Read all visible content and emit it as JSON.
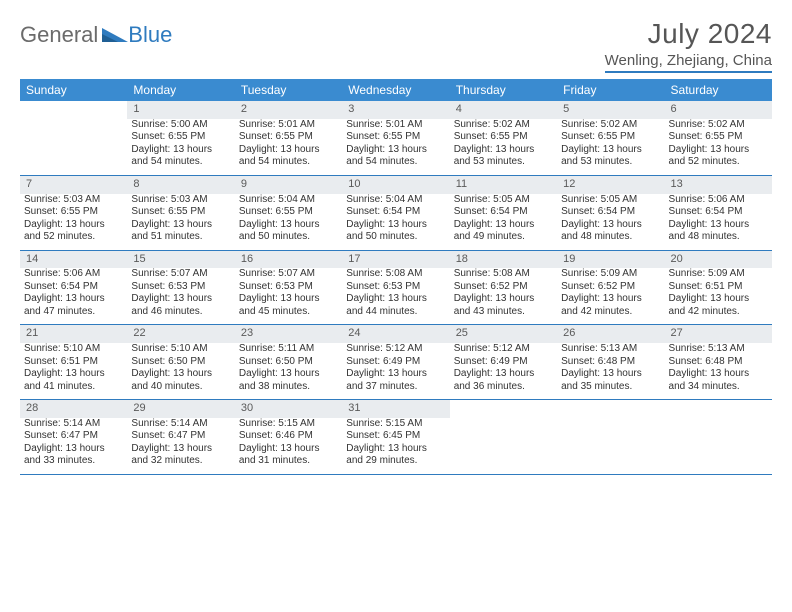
{
  "logo": {
    "text1": "General",
    "text2": "Blue"
  },
  "title": "July 2024",
  "location": "Wenling, Zhejiang, China",
  "colors": {
    "header_bg": "#3a8bd0",
    "header_text": "#ffffff",
    "daynum_bg": "#e9ecef",
    "border": "#2f7bbf",
    "text": "#333333",
    "title_text": "#565656"
  },
  "weekdays": [
    "Sunday",
    "Monday",
    "Tuesday",
    "Wednesday",
    "Thursday",
    "Friday",
    "Saturday"
  ],
  "weeks": [
    [
      null,
      {
        "n": "1",
        "sr": "5:00 AM",
        "ss": "6:55 PM",
        "dl1": "13 hours",
        "dl2": "and 54 minutes."
      },
      {
        "n": "2",
        "sr": "5:01 AM",
        "ss": "6:55 PM",
        "dl1": "13 hours",
        "dl2": "and 54 minutes."
      },
      {
        "n": "3",
        "sr": "5:01 AM",
        "ss": "6:55 PM",
        "dl1": "13 hours",
        "dl2": "and 54 minutes."
      },
      {
        "n": "4",
        "sr": "5:02 AM",
        "ss": "6:55 PM",
        "dl1": "13 hours",
        "dl2": "and 53 minutes."
      },
      {
        "n": "5",
        "sr": "5:02 AM",
        "ss": "6:55 PM",
        "dl1": "13 hours",
        "dl2": "and 53 minutes."
      },
      {
        "n": "6",
        "sr": "5:02 AM",
        "ss": "6:55 PM",
        "dl1": "13 hours",
        "dl2": "and 52 minutes."
      }
    ],
    [
      {
        "n": "7",
        "sr": "5:03 AM",
        "ss": "6:55 PM",
        "dl1": "13 hours",
        "dl2": "and 52 minutes."
      },
      {
        "n": "8",
        "sr": "5:03 AM",
        "ss": "6:55 PM",
        "dl1": "13 hours",
        "dl2": "and 51 minutes."
      },
      {
        "n": "9",
        "sr": "5:04 AM",
        "ss": "6:55 PM",
        "dl1": "13 hours",
        "dl2": "and 50 minutes."
      },
      {
        "n": "10",
        "sr": "5:04 AM",
        "ss": "6:54 PM",
        "dl1": "13 hours",
        "dl2": "and 50 minutes."
      },
      {
        "n": "11",
        "sr": "5:05 AM",
        "ss": "6:54 PM",
        "dl1": "13 hours",
        "dl2": "and 49 minutes."
      },
      {
        "n": "12",
        "sr": "5:05 AM",
        "ss": "6:54 PM",
        "dl1": "13 hours",
        "dl2": "and 48 minutes."
      },
      {
        "n": "13",
        "sr": "5:06 AM",
        "ss": "6:54 PM",
        "dl1": "13 hours",
        "dl2": "and 48 minutes."
      }
    ],
    [
      {
        "n": "14",
        "sr": "5:06 AM",
        "ss": "6:54 PM",
        "dl1": "13 hours",
        "dl2": "and 47 minutes."
      },
      {
        "n": "15",
        "sr": "5:07 AM",
        "ss": "6:53 PM",
        "dl1": "13 hours",
        "dl2": "and 46 minutes."
      },
      {
        "n": "16",
        "sr": "5:07 AM",
        "ss": "6:53 PM",
        "dl1": "13 hours",
        "dl2": "and 45 minutes."
      },
      {
        "n": "17",
        "sr": "5:08 AM",
        "ss": "6:53 PM",
        "dl1": "13 hours",
        "dl2": "and 44 minutes."
      },
      {
        "n": "18",
        "sr": "5:08 AM",
        "ss": "6:52 PM",
        "dl1": "13 hours",
        "dl2": "and 43 minutes."
      },
      {
        "n": "19",
        "sr": "5:09 AM",
        "ss": "6:52 PM",
        "dl1": "13 hours",
        "dl2": "and 42 minutes."
      },
      {
        "n": "20",
        "sr": "5:09 AM",
        "ss": "6:51 PM",
        "dl1": "13 hours",
        "dl2": "and 42 minutes."
      }
    ],
    [
      {
        "n": "21",
        "sr": "5:10 AM",
        "ss": "6:51 PM",
        "dl1": "13 hours",
        "dl2": "and 41 minutes."
      },
      {
        "n": "22",
        "sr": "5:10 AM",
        "ss": "6:50 PM",
        "dl1": "13 hours",
        "dl2": "and 40 minutes."
      },
      {
        "n": "23",
        "sr": "5:11 AM",
        "ss": "6:50 PM",
        "dl1": "13 hours",
        "dl2": "and 38 minutes."
      },
      {
        "n": "24",
        "sr": "5:12 AM",
        "ss": "6:49 PM",
        "dl1": "13 hours",
        "dl2": "and 37 minutes."
      },
      {
        "n": "25",
        "sr": "5:12 AM",
        "ss": "6:49 PM",
        "dl1": "13 hours",
        "dl2": "and 36 minutes."
      },
      {
        "n": "26",
        "sr": "5:13 AM",
        "ss": "6:48 PM",
        "dl1": "13 hours",
        "dl2": "and 35 minutes."
      },
      {
        "n": "27",
        "sr": "5:13 AM",
        "ss": "6:48 PM",
        "dl1": "13 hours",
        "dl2": "and 34 minutes."
      }
    ],
    [
      {
        "n": "28",
        "sr": "5:14 AM",
        "ss": "6:47 PM",
        "dl1": "13 hours",
        "dl2": "and 33 minutes."
      },
      {
        "n": "29",
        "sr": "5:14 AM",
        "ss": "6:47 PM",
        "dl1": "13 hours",
        "dl2": "and 32 minutes."
      },
      {
        "n": "30",
        "sr": "5:15 AM",
        "ss": "6:46 PM",
        "dl1": "13 hours",
        "dl2": "and 31 minutes."
      },
      {
        "n": "31",
        "sr": "5:15 AM",
        "ss": "6:45 PM",
        "dl1": "13 hours",
        "dl2": "and 29 minutes."
      },
      null,
      null,
      null
    ]
  ],
  "labels": {
    "sunrise": "Sunrise:",
    "sunset": "Sunset:",
    "daylight": "Daylight:"
  }
}
